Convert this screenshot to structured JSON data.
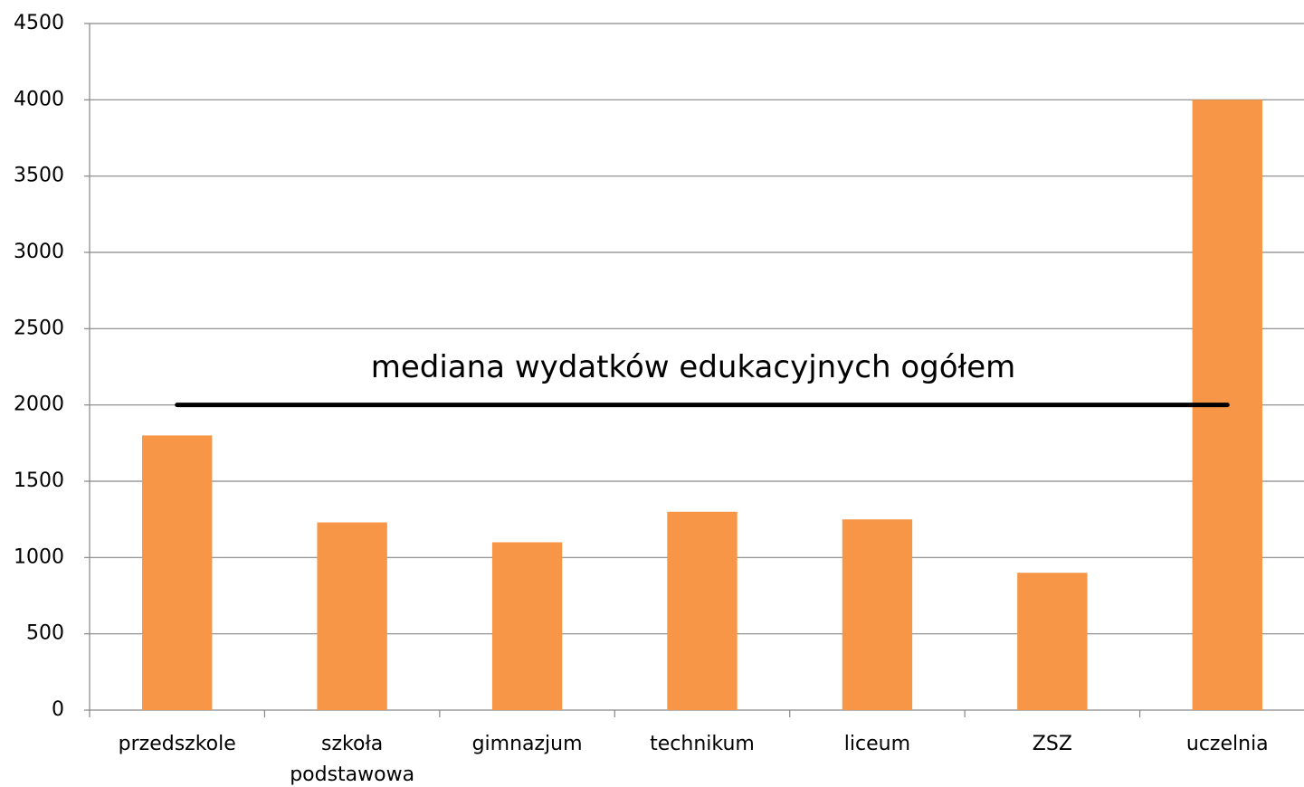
{
  "chart_data": {
    "type": "bar",
    "categories": [
      "przedszkole",
      "szkoła podstawowa",
      "gimnazjum",
      "technikum",
      "liceum",
      "ZSZ",
      "uczelnia"
    ],
    "values": [
      1800,
      1230,
      1100,
      1300,
      1250,
      900,
      4000
    ],
    "color": "#f79646",
    "ylim": [
      0,
      4500
    ],
    "yticks": [
      0,
      500,
      1000,
      1500,
      2000,
      2500,
      3000,
      3500,
      4000,
      4500
    ],
    "grid": true,
    "median": {
      "label": "mediana wydatków edukacyjnych ogółem",
      "value": 2000
    }
  }
}
